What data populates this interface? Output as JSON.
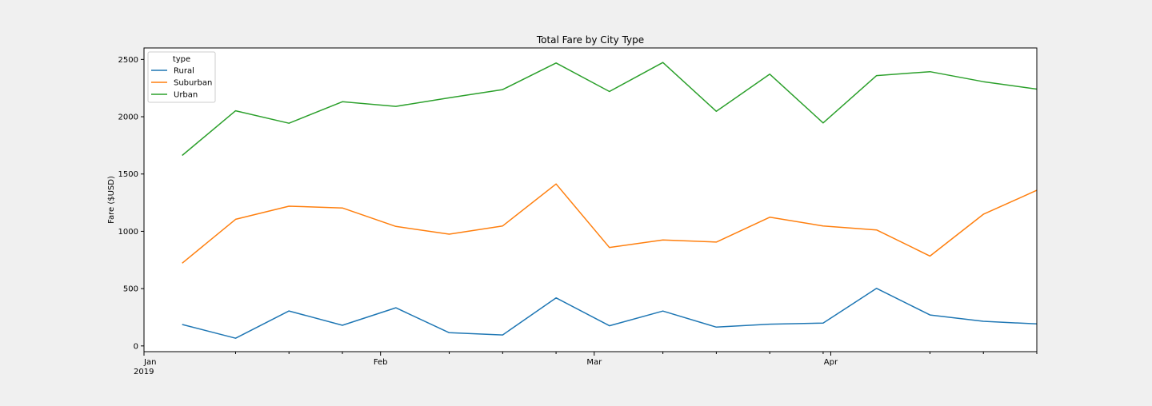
{
  "chart_data": {
    "type": "line",
    "title": "Total Fare by City Type",
    "xlabel": "",
    "ylabel": "Fare ($USD)",
    "ylim": [
      -50,
      2600
    ],
    "y_ticks": [
      0,
      500,
      1000,
      1500,
      2000,
      2500
    ],
    "x": [
      "2019-01-06",
      "2019-01-13",
      "2019-01-20",
      "2019-01-27",
      "2019-02-03",
      "2019-02-10",
      "2019-02-17",
      "2019-02-24",
      "2019-03-03",
      "2019-03-10",
      "2019-03-17",
      "2019-03-24",
      "2019-03-31",
      "2019-04-07",
      "2019-04-14",
      "2019-04-21",
      "2019-04-28"
    ],
    "xlim": [
      "2019-01-01",
      "2019-04-28"
    ],
    "x_major_ticks": [
      {
        "date": "2019-01-01",
        "label": "Jan",
        "sublabel": "2019"
      },
      {
        "date": "2019-02-01",
        "label": "Feb",
        "sublabel": ""
      },
      {
        "date": "2019-03-01",
        "label": "Mar",
        "sublabel": ""
      },
      {
        "date": "2019-04-01",
        "label": "Apr",
        "sublabel": ""
      }
    ],
    "x_minor_ticks": [
      "2019-01-13",
      "2019-01-20",
      "2019-01-27",
      "2019-02-10",
      "2019-02-17",
      "2019-02-24",
      "2019-03-10",
      "2019-03-17",
      "2019-03-24",
      "2019-03-31",
      "2019-04-14",
      "2019-04-21",
      "2019-04-28"
    ],
    "legend": {
      "title": "type",
      "placement": "top-left"
    },
    "grid": false,
    "series": [
      {
        "name": "Rural",
        "color": "#1f77b4",
        "values": [
          187,
          67,
          305,
          180,
          333,
          115,
          96,
          419,
          176,
          304,
          164,
          190,
          199,
          502,
          270,
          215,
          192
        ]
      },
      {
        "name": "Suburban",
        "color": "#ff7f0e",
        "values": [
          722,
          1105,
          1219,
          1204,
          1043,
          975,
          1047,
          1413,
          859,
          925,
          906,
          1123,
          1047,
          1012,
          784,
          1149,
          1358
        ]
      },
      {
        "name": "Urban",
        "color": "#2ca02c",
        "values": [
          1662,
          2052,
          1943,
          2131,
          2090,
          2165,
          2237,
          2469,
          2220,
          2473,
          2047,
          2371,
          1946,
          2359,
          2393,
          2306,
          2241
        ]
      }
    ]
  }
}
